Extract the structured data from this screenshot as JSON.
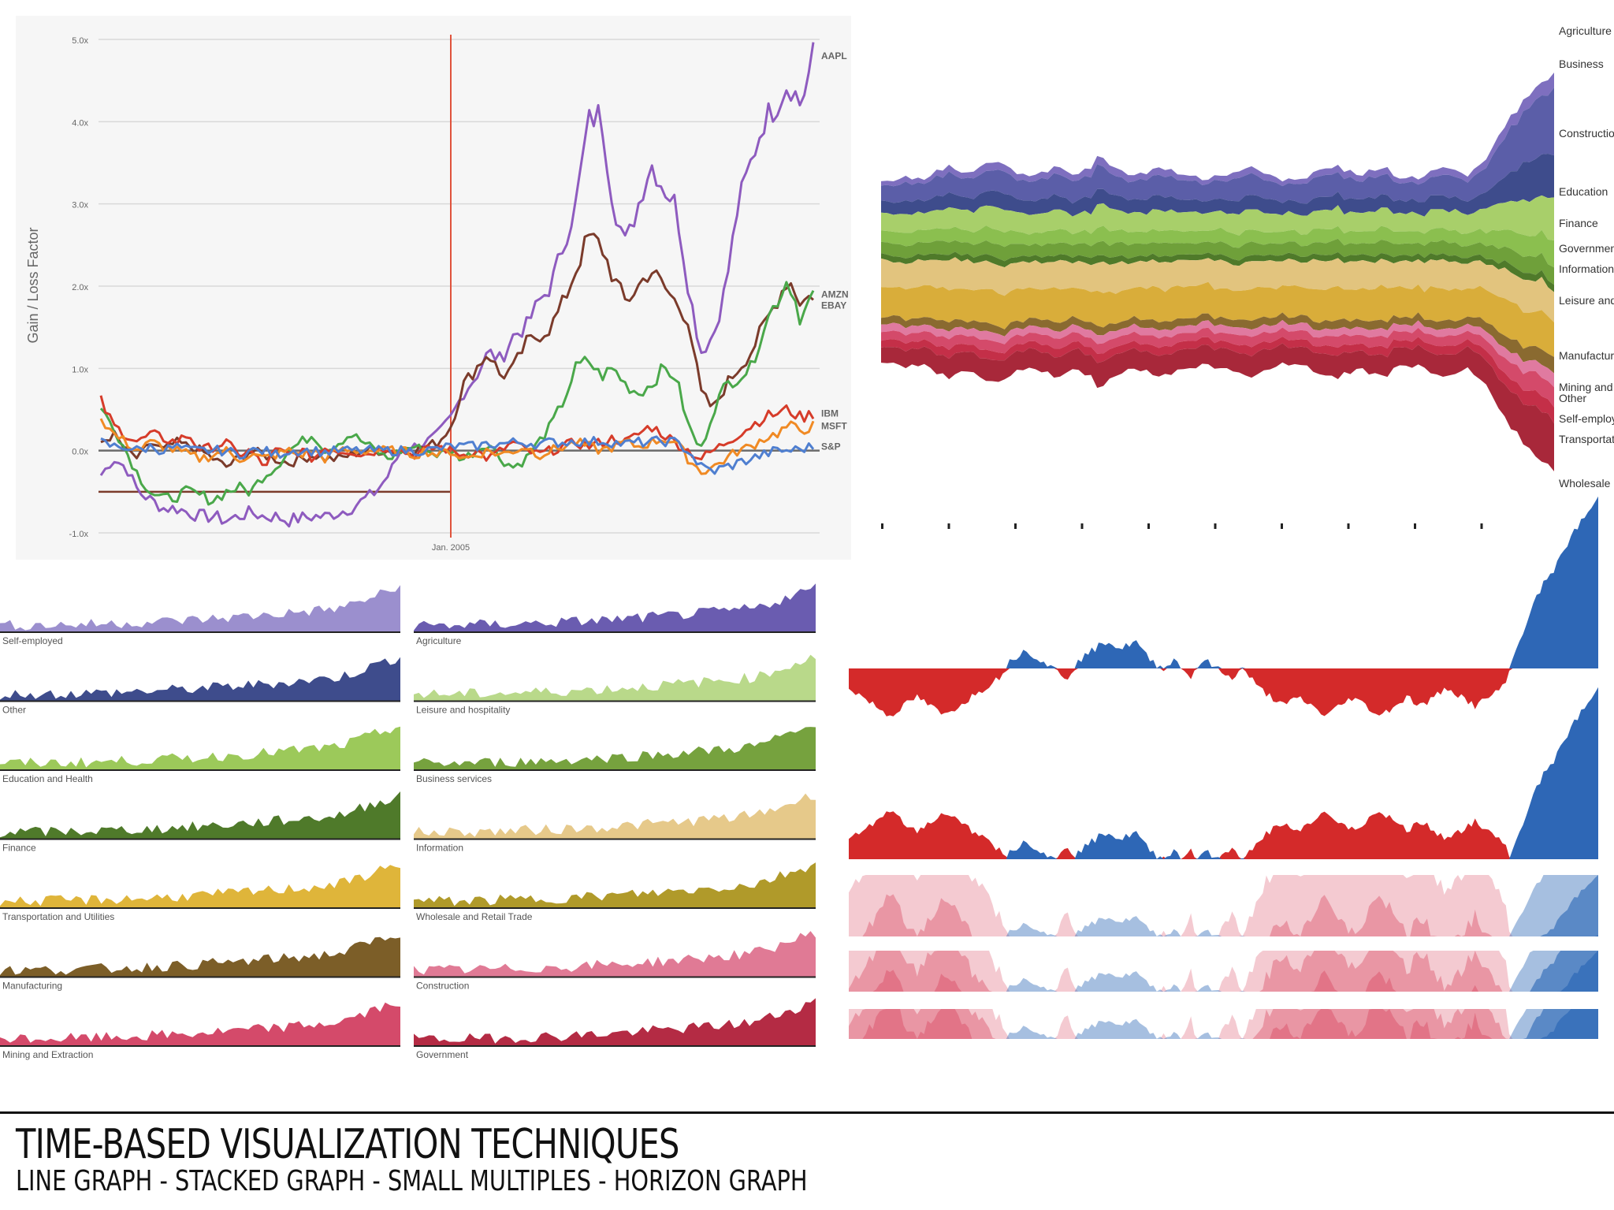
{
  "footer": {
    "title": "TIME-BASED VISUALIZATION TECHNIQUES",
    "subtitle": "LINE GRAPH - STACKED GRAPH - SMALL MULTIPLES - HORIZON GRAPH"
  },
  "colors": {
    "purple": "#8e5bbf",
    "brown": "#7b3b2b",
    "green": "#4aa84a",
    "red": "#d63c2a",
    "orange": "#f08a24",
    "blue": "#4f7fd0",
    "neg_red": "#d42a2a",
    "pos_blue": "#2e67b6"
  },
  "chart_data": [
    {
      "id": "line-graph",
      "type": "line",
      "ylabel": "Gain / Loss Factor",
      "yticks": [
        "5.0x",
        "4.0x",
        "3.0x",
        "2.0x",
        "1.0x",
        "0.0x",
        "-1.0x"
      ],
      "ylim": [
        -1.0,
        5.0
      ],
      "xtick": "Jan. 2005",
      "grid": true,
      "series": [
        {
          "name": "AAPL",
          "color": "#8e5bbf",
          "values": [
            -0.3,
            -0.1,
            -0.2,
            -0.5,
            -0.6,
            -0.7,
            -0.7,
            -0.75,
            -0.8,
            -0.8,
            -0.85,
            -0.8,
            -0.75,
            -0.8,
            -0.8,
            -0.85,
            -0.82,
            -0.8,
            -0.8,
            -0.75,
            -0.7,
            -0.6,
            -0.5,
            -0.3,
            0.0,
            0.05,
            0.1,
            0.2,
            0.4,
            0.7,
            0.9,
            1.2,
            1.1,
            1.4,
            1.5,
            1.8,
            2.0,
            2.5,
            3.0,
            4.0,
            4.1,
            3.0,
            2.5,
            3.0,
            3.5,
            3.2,
            3.0,
            2.0,
            1.2,
            1.4,
            2.0,
            3.0,
            3.5,
            4.0,
            4.2,
            4.5,
            4.2,
            4.8
          ]
        },
        {
          "name": "AMZN",
          "color": "#7b3b2b",
          "values": [
            0.1,
            0.2,
            0.0,
            -0.1,
            0.1,
            0.0,
            0.1,
            0.05,
            0.0,
            -0.1,
            -0.2,
            -0.1,
            0.0,
            -0.05,
            -0.1,
            -0.15,
            -0.1,
            -0.05,
            -0.1,
            -0.1,
            -0.05,
            0.0,
            0.0,
            0.0,
            0.0,
            0.0,
            0.05,
            0.1,
            0.3,
            0.8,
            1.0,
            1.2,
            0.9,
            1.0,
            1.3,
            1.4,
            1.5,
            1.8,
            2.2,
            2.6,
            2.5,
            2.1,
            1.8,
            2.0,
            2.2,
            2.0,
            1.8,
            1.6,
            0.7,
            0.5,
            0.8,
            1.0,
            1.2,
            1.5,
            1.8,
            2.1,
            1.8,
            1.9
          ]
        },
        {
          "name": "EBAY",
          "color": "#4aa84a",
          "values": [
            0.5,
            0.3,
            0.0,
            -0.3,
            -0.5,
            -0.6,
            -0.55,
            -0.5,
            -0.55,
            -0.6,
            -0.5,
            -0.45,
            -0.5,
            -0.3,
            -0.2,
            0.0,
            0.1,
            0.2,
            0.0,
            0.1,
            0.2,
            0.1,
            0.0,
            -0.1,
            0.0,
            0.05,
            0.0,
            -0.05,
            0.0,
            -0.1,
            0.0,
            0.1,
            -0.1,
            -0.2,
            -0.1,
            0.1,
            0.3,
            0.6,
            1.0,
            1.1,
            0.9,
            1.0,
            0.8,
            0.7,
            0.8,
            1.0,
            0.9,
            0.3,
            0.0,
            0.5,
            0.8,
            0.9,
            1.0,
            1.5,
            1.8,
            2.1,
            1.6,
            1.9
          ]
        },
        {
          "name": "IBM",
          "color": "#d63c2a",
          "values": [
            0.6,
            0.3,
            0.2,
            0.1,
            0.2,
            0.15,
            0.1,
            0.2,
            0.0,
            0.05,
            0.1,
            -0.05,
            0.0,
            -0.2,
            0.0,
            -0.05,
            0.0,
            -0.1,
            0.05,
            0.0,
            0.0,
            -0.05,
            0.0,
            0.05,
            0.0,
            -0.05,
            0.0,
            0.05,
            0.0,
            -0.05,
            0.0,
            -0.1,
            0.0,
            0.1,
            0.0,
            -0.05,
            0.0,
            0.05,
            0.1,
            0.05,
            0.1,
            0.15,
            0.1,
            0.2,
            0.3,
            0.2,
            0.1,
            0.0,
            -0.1,
            0.0,
            0.1,
            0.2,
            0.3,
            0.4,
            0.45,
            0.5,
            0.4,
            0.45
          ]
        },
        {
          "name": "MSFT",
          "color": "#f08a24",
          "values": [
            0.4,
            0.2,
            0.1,
            0.0,
            0.1,
            0.05,
            0.0,
            -0.05,
            -0.1,
            -0.05,
            0.0,
            -0.1,
            -0.05,
            -0.1,
            -0.05,
            0.0,
            -0.05,
            0.0,
            -0.1,
            0.0,
            0.0,
            0.0,
            0.0,
            0.0,
            0.0,
            -0.05,
            0.0,
            -0.05,
            0.0,
            -0.1,
            -0.05,
            0.0,
            -0.05,
            0.0,
            0.05,
            -0.05,
            0.0,
            0.05,
            0.1,
            0.05,
            0.0,
            0.05,
            0.1,
            0.05,
            0.1,
            0.15,
            0.1,
            -0.1,
            -0.25,
            -0.2,
            -0.1,
            0.0,
            0.05,
            0.15,
            0.2,
            0.3,
            0.25,
            0.3
          ]
        },
        {
          "name": "S&P",
          "color": "#4f7fd0",
          "values": [
            0.1,
            0.05,
            0.05,
            0.0,
            0.05,
            0.0,
            0.05,
            0.0,
            0.0,
            0.0,
            0.0,
            -0.05,
            0.0,
            0.0,
            -0.05,
            0.0,
            0.0,
            0.0,
            -0.02,
            0.0,
            0.0,
            0.0,
            0.0,
            0.0,
            0.0,
            0.0,
            0.0,
            0.02,
            0.05,
            0.05,
            0.05,
            0.08,
            0.08,
            0.1,
            0.1,
            0.08,
            0.1,
            0.1,
            0.12,
            0.1,
            0.12,
            0.1,
            0.08,
            0.1,
            0.1,
            0.12,
            0.1,
            0.0,
            -0.2,
            -0.25,
            -0.2,
            -0.15,
            -0.1,
            -0.05,
            0.0,
            0.0,
            0.02,
            0.05
          ]
        }
      ]
    },
    {
      "id": "stacked-graph",
      "type": "area",
      "legend": [
        "Agriculture",
        "Business",
        "Construction",
        "Education",
        "Finance",
        "Government",
        "Information",
        "Leisure and",
        "Manufacturing",
        "Mining and",
        "Other",
        "Self-employed",
        "Transportation",
        "Wholesale"
      ],
      "series": [
        {
          "name": "Agriculture",
          "color": "#7e6fbf",
          "values": [
            3,
            4,
            3,
            5,
            4,
            6,
            5,
            4,
            5,
            4,
            6,
            5,
            4,
            5,
            4,
            3,
            4,
            5,
            4,
            3,
            4,
            5,
            4,
            5,
            3,
            4,
            5,
            4,
            6,
            8,
            9,
            10
          ]
        },
        {
          "name": "Business",
          "color": "#5b5ea8",
          "values": [
            10,
            12,
            11,
            14,
            13,
            15,
            14,
            13,
            15,
            14,
            16,
            14,
            13,
            15,
            13,
            12,
            14,
            15,
            13,
            12,
            13,
            15,
            13,
            14,
            12,
            13,
            15,
            14,
            18,
            30,
            40,
            45
          ]
        },
        {
          "name": "Construction",
          "color": "#3e4c8c",
          "values": [
            8,
            9,
            8,
            10,
            9,
            11,
            10,
            9,
            10,
            9,
            11,
            10,
            9,
            10,
            9,
            8,
            9,
            10,
            9,
            8,
            9,
            10,
            9,
            10,
            8,
            9,
            10,
            9,
            12,
            20,
            26,
            30
          ]
        },
        {
          "name": "Education",
          "color": "#a8cf6a",
          "values": [
            12,
            13,
            12,
            14,
            13,
            15,
            14,
            13,
            14,
            13,
            15,
            14,
            13,
            14,
            13,
            12,
            13,
            14,
            13,
            12,
            13,
            14,
            13,
            14,
            12,
            13,
            14,
            13,
            16,
            20,
            24,
            27
          ]
        },
        {
          "name": "Finance",
          "color": "#8bbf4f",
          "values": [
            8,
            9,
            8,
            9,
            8,
            10,
            9,
            8,
            9,
            8,
            10,
            9,
            8,
            9,
            8,
            8,
            9,
            9,
            8,
            8,
            9,
            9,
            8,
            9,
            8,
            9,
            9,
            8,
            10,
            13,
            15,
            17
          ]
        },
        {
          "name": "Government",
          "color": "#6fa03a",
          "values": [
            8,
            8,
            8,
            9,
            8,
            9,
            9,
            8,
            9,
            8,
            9,
            9,
            8,
            9,
            8,
            8,
            8,
            9,
            8,
            8,
            8,
            9,
            8,
            9,
            8,
            8,
            9,
            8,
            9,
            10,
            11,
            12
          ]
        },
        {
          "name": "Information",
          "color": "#4f7a2a",
          "values": [
            4,
            4,
            4,
            4,
            4,
            5,
            4,
            4,
            4,
            4,
            5,
            4,
            4,
            4,
            4,
            4,
            4,
            4,
            4,
            4,
            4,
            4,
            4,
            4,
            4,
            4,
            4,
            4,
            4,
            5,
            5,
            5
          ]
        },
        {
          "name": "Leisure",
          "color": "#e2c47e",
          "values": [
            18,
            19,
            18,
            20,
            19,
            20,
            19,
            18,
            19,
            18,
            20,
            19,
            18,
            19,
            18,
            18,
            19,
            19,
            18,
            18,
            19,
            19,
            18,
            19,
            18,
            19,
            19,
            18,
            19,
            20,
            21,
            22
          ]
        },
        {
          "name": "Manufacturing",
          "color": "#d9ad3a",
          "values": [
            20,
            21,
            20,
            22,
            21,
            23,
            22,
            21,
            22,
            21,
            23,
            22,
            21,
            22,
            21,
            20,
            21,
            22,
            21,
            20,
            21,
            22,
            21,
            22,
            20,
            21,
            22,
            21,
            22,
            24,
            25,
            26
          ]
        },
        {
          "name": "Mining",
          "color": "#8a6a30",
          "values": [
            5,
            5,
            5,
            6,
            5,
            6,
            5,
            5,
            6,
            5,
            6,
            5,
            5,
            6,
            5,
            5,
            5,
            6,
            5,
            5,
            5,
            6,
            5,
            6,
            5,
            5,
            6,
            5,
            7,
            9,
            10,
            11
          ]
        },
        {
          "name": "Other",
          "color": "#e07aa0",
          "values": [
            5,
            5,
            5,
            5,
            5,
            6,
            5,
            5,
            5,
            5,
            6,
            5,
            5,
            5,
            5,
            5,
            5,
            5,
            5,
            5,
            5,
            5,
            5,
            5,
            5,
            5,
            5,
            5,
            6,
            7,
            8,
            9
          ]
        },
        {
          "name": "Self-employed",
          "color": "#d44a6a",
          "values": [
            6,
            6,
            6,
            7,
            6,
            7,
            6,
            6,
            7,
            6,
            7,
            6,
            6,
            7,
            6,
            6,
            6,
            7,
            6,
            6,
            6,
            7,
            6,
            7,
            6,
            6,
            7,
            6,
            8,
            11,
            13,
            14
          ]
        },
        {
          "name": "Transportation",
          "color": "#c42f48",
          "values": [
            5,
            5,
            5,
            6,
            5,
            6,
            5,
            5,
            6,
            5,
            6,
            5,
            5,
            6,
            5,
            5,
            5,
            6,
            5,
            5,
            5,
            6,
            5,
            6,
            5,
            5,
            6,
            5,
            7,
            9,
            10,
            11
          ]
        },
        {
          "name": "Wholesale",
          "color": "#a8283a",
          "values": [
            10,
            12,
            11,
            14,
            13,
            15,
            14,
            13,
            15,
            14,
            16,
            14,
            13,
            15,
            13,
            12,
            14,
            15,
            13,
            12,
            13,
            15,
            13,
            14,
            12,
            13,
            15,
            14,
            18,
            26,
            32,
            36
          ]
        }
      ]
    },
    {
      "id": "small-multiples",
      "type": "area",
      "panels": [
        {
          "name": "Self-employed",
          "color": "#9b8fce"
        },
        {
          "name": "Agriculture",
          "color": "#6a5cb0"
        },
        {
          "name": "Other",
          "color": "#3e4c8c"
        },
        {
          "name": "Leisure and hospitality",
          "color": "#b9d98a"
        },
        {
          "name": "Education and Health",
          "color": "#9cc95a"
        },
        {
          "name": "Business services",
          "color": "#76a23e"
        },
        {
          "name": "Finance",
          "color": "#4f7a2a"
        },
        {
          "name": "Information",
          "color": "#e6c98a"
        },
        {
          "name": "Transportation and Utilities",
          "color": "#dfb53a"
        },
        {
          "name": "Wholesale and Retail Trade",
          "color": "#b09a2a"
        },
        {
          "name": "Manufacturing",
          "color": "#7c5e28"
        },
        {
          "name": "Construction",
          "color": "#e07a95"
        },
        {
          "name": "Mining and Extraction",
          "color": "#d44a6a"
        },
        {
          "name": "Government",
          "color": "#b42b44"
        }
      ]
    },
    {
      "id": "horizon-graph",
      "type": "area",
      "values": [
        -2,
        -3,
        -4,
        -5,
        -4,
        -3,
        -4,
        -5,
        -4,
        -3,
        -2,
        -1,
        1,
        2,
        1,
        0,
        -1,
        1,
        2,
        3,
        2,
        3,
        1,
        0,
        1,
        -1,
        1,
        0,
        -1,
        0,
        -2,
        -3,
        -4,
        -3,
        -4,
        -5,
        -4,
        -3,
        -4,
        -5,
        -4,
        -3,
        -4,
        -3,
        -2,
        -3,
        -4,
        -3,
        -2,
        2,
        6,
        9,
        11,
        14,
        16,
        18
      ]
    }
  ]
}
